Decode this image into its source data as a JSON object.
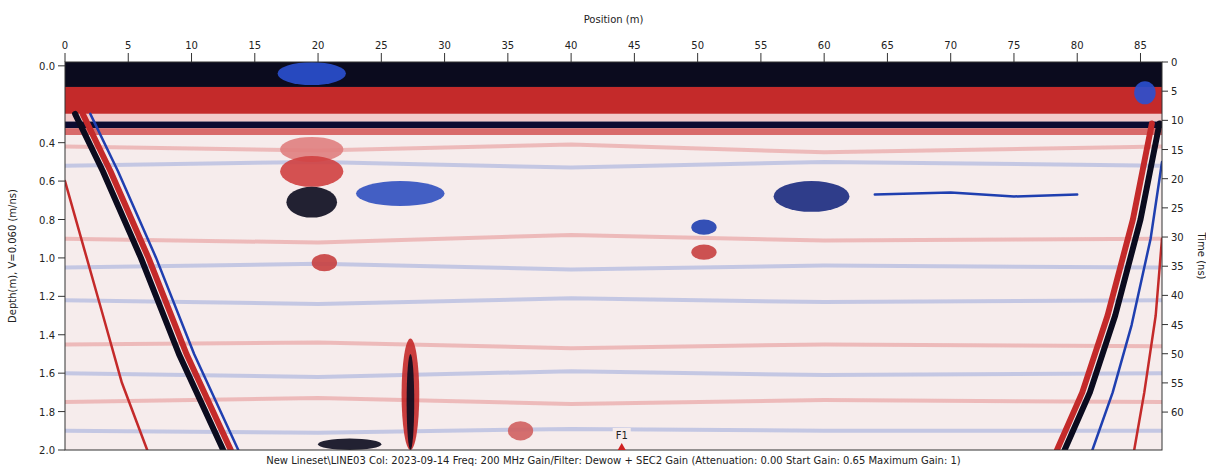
{
  "chart_data": {
    "type": "radargram",
    "xlabel": "Position (m)",
    "ylabel": "Depth(m), V=0.060 (m/ns)",
    "y2label": "Time (ns)",
    "caption": "New Lineset\\LINE03  Col: 2023-09-14  Freq: 200 MHz  Gain/Filter: Dewow + SEC2 Gain (Attenuation: 0.00  Start Gain: 0.65  Maximum Gain: 1)",
    "xlim": [
      0,
      86.7
    ],
    "xticks": [
      0,
      5,
      10,
      15,
      20,
      25,
      30,
      35,
      40,
      45,
      50,
      55,
      60,
      65,
      70,
      75,
      80,
      85
    ],
    "ylim": [
      -0.02,
      2.0
    ],
    "yticks": [
      {
        "value": 0,
        "label": "0.0"
      },
      0.4,
      0.6,
      0.8,
      {
        "value": 1,
        "label": "1.0"
      },
      1.2,
      1.4,
      1.6,
      1.8,
      {
        "value": 2,
        "label": "2.0"
      }
    ],
    "y2lim": [
      0,
      66.5
    ],
    "y2ticks": [
      0,
      5,
      10,
      15,
      20,
      25,
      30,
      35,
      40,
      45,
      50,
      55,
      60
    ],
    "markers": [
      {
        "x": 44,
        "label": "F1",
        "color": "#d02020"
      }
    ],
    "layers": [
      {
        "depth": [
          -0.02,
          0.11
        ],
        "color": "#0b0b1e"
      },
      {
        "depth": [
          0.11,
          0.25
        ],
        "color": "#c42a2a"
      },
      {
        "depth": [
          0.25,
          0.29
        ],
        "color": "#f2caca"
      },
      {
        "depth": [
          0.29,
          0.325
        ],
        "color": "#0b0b30"
      },
      {
        "depth": [
          0.325,
          0.36
        ],
        "color": "#d86a6a"
      }
    ],
    "reflectors": [
      {
        "x": [
          0,
          20,
          40,
          60,
          86.7
        ],
        "depth": [
          0.42,
          0.44,
          0.41,
          0.45,
          0.42
        ],
        "color": "#e07070",
        "line_style": "faint"
      },
      {
        "x": [
          0,
          20,
          40,
          60,
          86.7
        ],
        "depth": [
          0.52,
          0.5,
          0.53,
          0.5,
          0.52
        ],
        "color": "#7a90d8",
        "line_style": "faint"
      },
      {
        "x": [
          0,
          20,
          40,
          60,
          86.7
        ],
        "depth": [
          0.9,
          0.92,
          0.88,
          0.91,
          0.9
        ],
        "color": "#e07070",
        "line_style": "faint"
      },
      {
        "x": [
          0,
          20,
          40,
          60,
          86.7
        ],
        "depth": [
          1.05,
          1.03,
          1.06,
          1.04,
          1.05
        ],
        "color": "#7a90d8",
        "line_style": "faint"
      },
      {
        "x": [
          0,
          20,
          40,
          60,
          86.7
        ],
        "depth": [
          1.22,
          1.24,
          1.21,
          1.23,
          1.22
        ],
        "color": "#7a90d8",
        "line_style": "faint"
      },
      {
        "x": [
          0,
          20,
          40,
          60,
          86.7
        ],
        "depth": [
          1.45,
          1.44,
          1.47,
          1.45,
          1.46
        ],
        "color": "#e07070",
        "line_style": "faint"
      },
      {
        "x": [
          0,
          20,
          40,
          60,
          86.7
        ],
        "depth": [
          1.6,
          1.62,
          1.59,
          1.61,
          1.6
        ],
        "color": "#7a90d8",
        "line_style": "faint"
      },
      {
        "x": [
          0,
          20,
          40,
          60,
          86.7
        ],
        "depth": [
          1.75,
          1.73,
          1.76,
          1.74,
          1.75
        ],
        "color": "#e07070",
        "line_style": "faint"
      },
      {
        "x": [
          0,
          20,
          40,
          60,
          86.7
        ],
        "depth": [
          1.9,
          1.91,
          1.89,
          1.9,
          1.9
        ],
        "color": "#7a90d8",
        "line_style": "faint"
      },
      {
        "x": [
          64,
          70,
          75,
          80
        ],
        "depth": [
          0.67,
          0.66,
          0.68,
          0.67
        ],
        "color": "#1f3fb0",
        "line_style": "thin"
      },
      {
        "x": [
          0.8,
          3,
          6,
          9,
          12.5
        ],
        "depth": [
          0.25,
          0.55,
          1.0,
          1.5,
          2.0
        ],
        "color": "#0b0b1e",
        "line_style": "thick"
      },
      {
        "x": [
          1.4,
          3.6,
          6.6,
          9.6,
          13.1
        ],
        "depth": [
          0.25,
          0.55,
          1.0,
          1.5,
          2.0
        ],
        "color": "#c42a2a",
        "line_style": "thick"
      },
      {
        "x": [
          2.0,
          4.2,
          7.2,
          10.2,
          13.7
        ],
        "depth": [
          0.25,
          0.55,
          1.0,
          1.5,
          2.0
        ],
        "color": "#1f3fb0",
        "line_style": "thin"
      },
      {
        "x": [
          0,
          1.5,
          3,
          4.5,
          6.5
        ],
        "depth": [
          0.6,
          0.95,
          1.3,
          1.65,
          2.0
        ],
        "color": "#c42a2a",
        "line_style": "thin"
      },
      {
        "x": [
          86.5,
          85,
          83,
          81,
          79
        ],
        "depth": [
          0.3,
          0.8,
          1.3,
          1.7,
          2.0
        ],
        "color": "#0b0b1e",
        "line_style": "thick"
      },
      {
        "x": [
          85.9,
          84.4,
          82.4,
          80.4,
          78.4
        ],
        "depth": [
          0.3,
          0.8,
          1.3,
          1.7,
          2.0
        ],
        "color": "#c42a2a",
        "line_style": "thick"
      },
      {
        "x": [
          86.7,
          85.8,
          84.3,
          82.8,
          81.2
        ],
        "depth": [
          0.5,
          0.9,
          1.35,
          1.7,
          2.0
        ],
        "color": "#1f3fb0",
        "line_style": "thin"
      },
      {
        "x": [
          86.7,
          86.2,
          85.3,
          84.5
        ],
        "depth": [
          0.9,
          1.3,
          1.7,
          2.0
        ],
        "color": "#c42a2a",
        "line_style": "thin"
      }
    ],
    "anomalies": [
      {
        "x": [
          16.8,
          22.2
        ],
        "depth": [
          -0.02,
          0.1
        ],
        "color": "#2a50d0"
      },
      {
        "x": [
          84.5,
          86.2
        ],
        "depth": [
          0.08,
          0.2
        ],
        "color": "#2a50d0"
      },
      {
        "x": [
          17,
          22
        ],
        "depth": [
          0.37,
          0.5
        ],
        "color": "#e08080"
      },
      {
        "x": [
          17,
          22
        ],
        "depth": [
          0.47,
          0.63
        ],
        "color": "#d04040"
      },
      {
        "x": [
          17.5,
          21.5
        ],
        "depth": [
          0.63,
          0.79
        ],
        "color": "#0b0b1e"
      },
      {
        "x": [
          23,
          30
        ],
        "depth": [
          0.6,
          0.73
        ],
        "color": "#3050c0"
      },
      {
        "x": [
          56,
          62
        ],
        "depth": [
          0.6,
          0.76
        ],
        "color": "#1a2a80"
      },
      {
        "x": [
          49.5,
          51.5
        ],
        "depth": [
          0.8,
          0.88
        ],
        "color": "#1f3fb0"
      },
      {
        "x": [
          49.5,
          51.5
        ],
        "depth": [
          0.93,
          1.01
        ],
        "color": "#c84040"
      },
      {
        "x": [
          19.5,
          21.5
        ],
        "depth": [
          0.98,
          1.07
        ],
        "color": "#c84040"
      },
      {
        "x": [
          26.6,
          28
        ],
        "depth": [
          1.42,
          2.0
        ],
        "color": "#c42a2a"
      },
      {
        "x": [
          27,
          27.6
        ],
        "depth": [
          1.5,
          2.0
        ],
        "color": "#0b0b1e"
      },
      {
        "x": [
          20,
          25
        ],
        "depth": [
          1.94,
          2.0
        ],
        "color": "#0b0b1e"
      },
      {
        "x": [
          35,
          37
        ],
        "depth": [
          1.85,
          1.95
        ],
        "color": "#d06060"
      }
    ]
  }
}
